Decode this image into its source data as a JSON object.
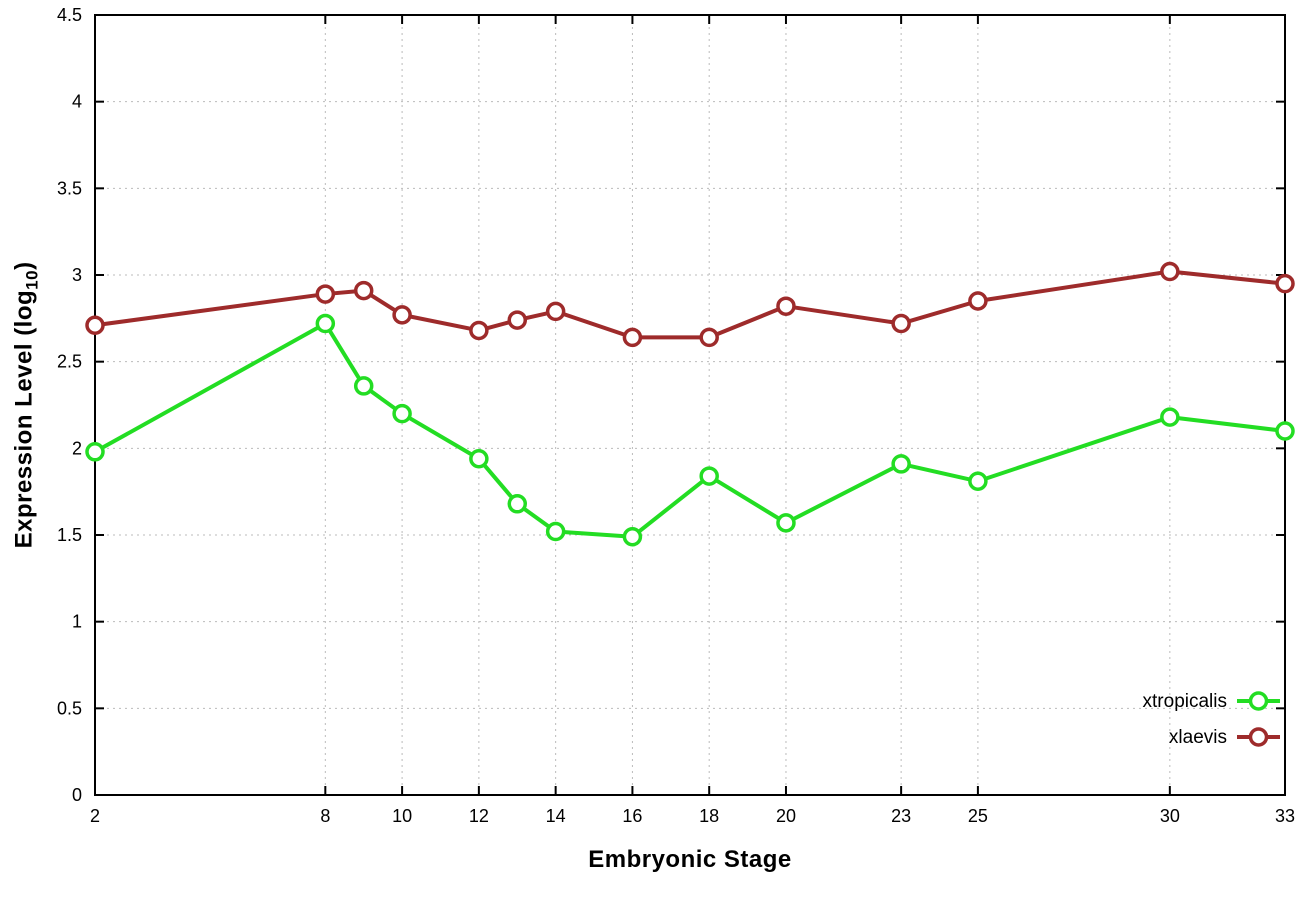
{
  "chart_data": {
    "type": "line",
    "title": "",
    "xlabel": "Embryonic Stage",
    "ylabel": "Expression Level (log10)",
    "ylabel_parts": {
      "prefix": "Expression Level (log",
      "subscript": "10",
      "suffix": ")"
    },
    "xlim": [
      2,
      33
    ],
    "ylim": [
      0,
      4.5
    ],
    "grid": true,
    "legend_position": "bottom-right",
    "x": [
      2,
      8,
      9,
      10,
      12,
      13,
      14,
      16,
      18,
      20,
      23,
      25,
      30,
      33
    ],
    "x_ticks": [
      2,
      8,
      10,
      12,
      14,
      16,
      18,
      20,
      23,
      25,
      30,
      33
    ],
    "x_tick_labels": [
      "2",
      "8",
      "10",
      "12",
      "14",
      "16",
      "18",
      "20",
      "23",
      "25",
      "30",
      "33"
    ],
    "y_ticks": [
      0,
      0.5,
      1,
      1.5,
      2,
      2.5,
      3,
      3.5,
      4,
      4.5
    ],
    "y_tick_labels": [
      "0",
      "0.5",
      "1",
      "1.5",
      "2",
      "2.5",
      "3",
      "3.5",
      "4",
      "4.5"
    ],
    "series": [
      {
        "name": "xtropicalis",
        "color": "#23dd23",
        "marker": "open-circle",
        "values": [
          1.98,
          2.72,
          2.36,
          2.2,
          1.94,
          1.68,
          1.52,
          1.49,
          1.84,
          1.57,
          1.91,
          1.81,
          2.18,
          2.1
        ]
      },
      {
        "name": "xlaevis",
        "color": "#9e2b2b",
        "marker": "open-circle",
        "values": [
          2.71,
          2.89,
          2.91,
          2.77,
          2.68,
          2.74,
          2.79,
          2.64,
          2.64,
          2.82,
          2.72,
          2.85,
          3.02,
          2.95
        ]
      }
    ],
    "style": {
      "background": "#ffffff",
      "border_color": "#000000",
      "grid_color": "#bbbbbb",
      "tick_label_color": "#000000"
    }
  }
}
